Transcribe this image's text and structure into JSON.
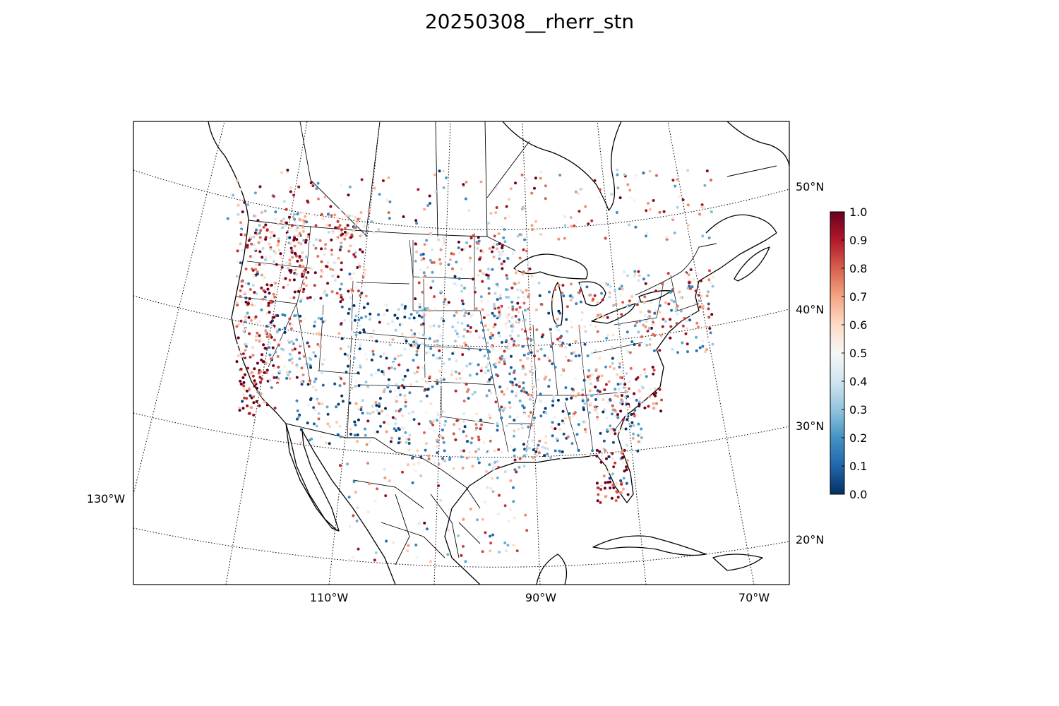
{
  "title": "20250308__rherr_stn",
  "map": {
    "projection": "lambert-conformal-conic",
    "meridian_labels": [
      "130°W",
      "110°W",
      "90°W",
      "70°W"
    ],
    "parallel_labels": [
      "20°N",
      "30°N",
      "40°N",
      "50°N"
    ],
    "gridlines": "dotted",
    "features": [
      "coastlines",
      "country-borders",
      "us-state-boundaries",
      "mexico-state-boundaries"
    ]
  },
  "colorbar": {
    "colormap": "RdBu_r",
    "ticks": [
      "0.0",
      "0.1",
      "0.2",
      "0.3",
      "0.4",
      "0.5",
      "0.6",
      "0.7",
      "0.8",
      "0.9",
      "1.0"
    ],
    "min": 0.0,
    "max": 1.0,
    "colors": [
      "#053061",
      "#2166ac",
      "#4393c3",
      "#92c5de",
      "#d1e5f0",
      "#f7f7f7",
      "#fddbc7",
      "#f4a582",
      "#d6604d",
      "#b2182b",
      "#67001f"
    ]
  },
  "chart_data": {
    "type": "scatter",
    "title": "20250308__rherr_stn",
    "description_of_values": "station dots colored by value 0.0–1.0",
    "value_range": [
      0.0,
      1.0
    ],
    "regional_patterns": [
      {
        "region": "California coast / Central Valley",
        "typical_value": 0.9
      },
      {
        "region": "Pacific Northwest",
        "typical_value": 0.75
      },
      {
        "region": "Northern Rockies / Idaho / W Montana",
        "typical_value": 0.8
      },
      {
        "region": "Great Basin (Nevada)",
        "typical_value": 0.4
      },
      {
        "region": "Colorado / Utah mountains",
        "typical_value": 0.2
      },
      {
        "region": "Arizona / New Mexico",
        "typical_value": 0.3
      },
      {
        "region": "Northern Plains",
        "typical_value": 0.6
      },
      {
        "region": "Central Plains",
        "typical_value": 0.5
      },
      {
        "region": "Texas / Oklahoma",
        "typical_value": 0.45
      },
      {
        "region": "Midwest / Great Lakes",
        "typical_value": 0.45
      },
      {
        "region": "Southeast",
        "typical_value": 0.35
      },
      {
        "region": "Florida Peninsula",
        "typical_value": 0.9
      },
      {
        "region": "Carolinas / Appalachians",
        "typical_value": 0.75
      },
      {
        "region": "Northeast / Mid-Atlantic",
        "typical_value": 0.55
      },
      {
        "region": "Southern Canada",
        "typical_value": 0.6
      },
      {
        "region": "Mexico",
        "typical_value": 0.55
      }
    ]
  }
}
